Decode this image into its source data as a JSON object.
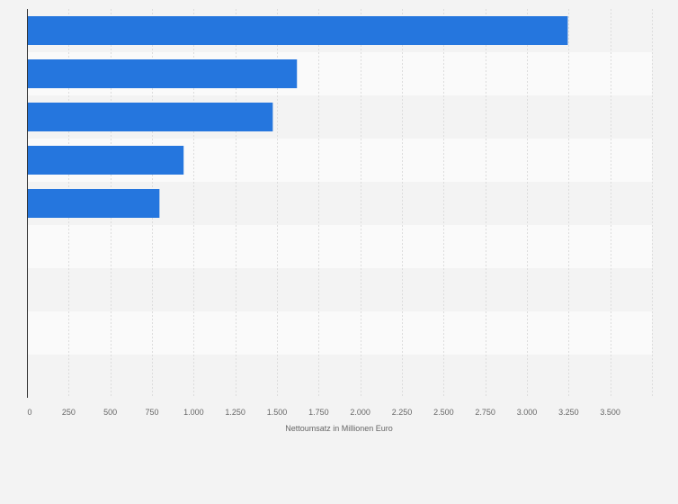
{
  "chart_data": {
    "type": "bar",
    "orientation": "horizontal",
    "title": "",
    "categories": [
      "",
      "",
      "",
      "",
      "",
      "",
      "",
      "",
      ""
    ],
    "values": [
      3245,
      1620,
      1475,
      940,
      795,
      null,
      null,
      null,
      null
    ],
    "xlabel": "Nettoumsatz in Millionen Euro",
    "ylabel": "",
    "xlim": [
      0,
      3750
    ],
    "xticks": [
      0,
      250,
      500,
      750,
      1000,
      1250,
      1500,
      1750,
      2000,
      2250,
      2500,
      2750,
      3000,
      3250,
      3500
    ],
    "xtick_labels": [
      "0",
      "250",
      "500",
      "750",
      "1.000",
      "1.250",
      "1.500",
      "1.750",
      "2.000",
      "2.250",
      "2.500",
      "2.750",
      "3.000",
      "3.250",
      "3.500"
    ],
    "grid": true,
    "bar_color": "#2576de",
    "band_colors": [
      "#f3f3f3",
      "#fafafa"
    ]
  }
}
